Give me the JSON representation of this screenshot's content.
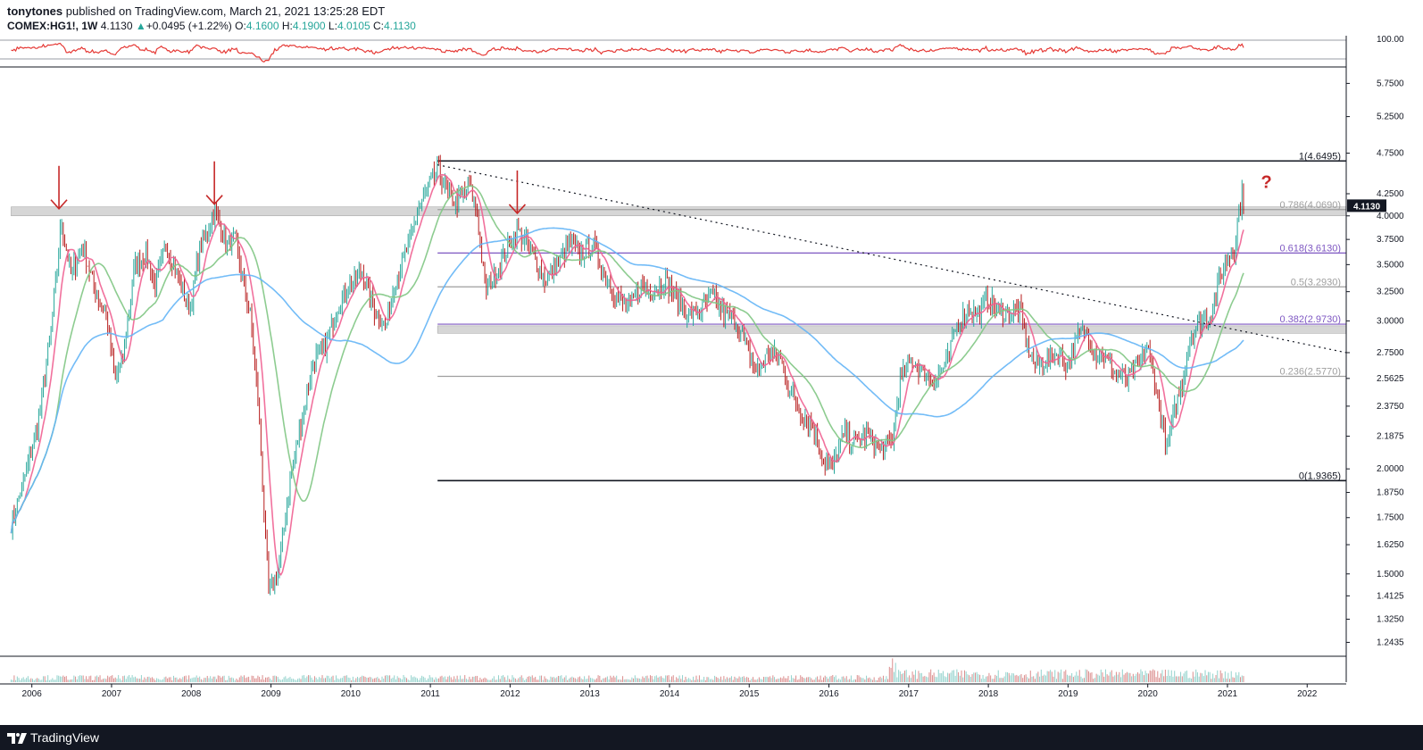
{
  "header": {
    "author": "tonytones",
    "published_text": "published on TradingView.com, March 21, 2021 13:25:28 EDT",
    "symbol": "COMEX:HG1!, 1W",
    "last": "4.1130",
    "change_arrow": "▲",
    "change": "+0.0495 (+1.22%)",
    "open_label": "O:",
    "open": "4.1600",
    "high_label": "H:",
    "high": "4.1900",
    "low_label": "L:",
    "low": "4.0105",
    "close_label": "C:",
    "close": "4.1130"
  },
  "footer": {
    "brand": "TradingView",
    "logo_icon": "tradingview-logo-icon"
  },
  "price_badge": "4.1130",
  "question_mark": "?",
  "oscillator_top_label": "100.00",
  "colors": {
    "up": "#26a69a",
    "down": "#b71c1c",
    "ma_fast": "#f06292",
    "ma_mid": "#81c784",
    "ma_slow": "#64b5f6",
    "fib_purple": "#7e57c2",
    "fib_gray": "#9e9e9e",
    "arrow": "#c62828",
    "oscillator": "#e53935",
    "badge": "#131722"
  },
  "chart_data": {
    "type": "candlestick",
    "timeframe": "1W",
    "symbol": "COMEX:HG1!",
    "x_ticks": [
      "2006",
      "2007",
      "2008",
      "2009",
      "2010",
      "2011",
      "2012",
      "2013",
      "2014",
      "2015",
      "2016",
      "2017",
      "2018",
      "2019",
      "2020",
      "2021",
      "2022"
    ],
    "y_ticks": [
      "5.7500",
      "5.2500",
      "4.7500",
      "4.2500",
      "4.0000",
      "3.7500",
      "3.5000",
      "3.2500",
      "3.0000",
      "2.7500",
      "2.5625",
      "2.3750",
      "2.1875",
      "2.0000",
      "1.8750",
      "1.7500",
      "1.6250",
      "1.5000",
      "1.4125",
      "1.3250",
      "1.2435"
    ],
    "y_scale": "log",
    "ylim": [
      1.2,
      6.0
    ],
    "xlim": [
      2005.7,
      2022.5
    ],
    "price_path": [
      [
        2005.75,
        1.72
      ],
      [
        2005.95,
        2.0
      ],
      [
        2006.1,
        2.3
      ],
      [
        2006.25,
        2.9
      ],
      [
        2006.38,
        3.95
      ],
      [
        2006.5,
        3.4
      ],
      [
        2006.65,
        3.7
      ],
      [
        2006.8,
        3.25
      ],
      [
        2006.95,
        3.05
      ],
      [
        2007.05,
        2.55
      ],
      [
        2007.15,
        2.7
      ],
      [
        2007.3,
        3.5
      ],
      [
        2007.45,
        3.6
      ],
      [
        2007.55,
        3.3
      ],
      [
        2007.7,
        3.7
      ],
      [
        2007.9,
        3.25
      ],
      [
        2008.0,
        3.1
      ],
      [
        2008.1,
        3.6
      ],
      [
        2008.3,
        4.05
      ],
      [
        2008.45,
        3.7
      ],
      [
        2008.55,
        3.75
      ],
      [
        2008.65,
        3.4
      ],
      [
        2008.75,
        3.05
      ],
      [
        2008.85,
        2.4
      ],
      [
        2008.92,
        1.8
      ],
      [
        2008.98,
        1.42
      ],
      [
        2009.1,
        1.5
      ],
      [
        2009.25,
        1.95
      ],
      [
        2009.4,
        2.3
      ],
      [
        2009.55,
        2.7
      ],
      [
        2009.7,
        2.8
      ],
      [
        2009.85,
        3.15
      ],
      [
        2010.0,
        3.3
      ],
      [
        2010.15,
        3.45
      ],
      [
        2010.3,
        3.1
      ],
      [
        2010.45,
        2.95
      ],
      [
        2010.55,
        3.3
      ],
      [
        2010.7,
        3.6
      ],
      [
        2010.85,
        4.05
      ],
      [
        2011.0,
        4.35
      ],
      [
        2011.1,
        4.55
      ],
      [
        2011.25,
        4.2
      ],
      [
        2011.35,
        4.15
      ],
      [
        2011.5,
        4.35
      ],
      [
        2011.6,
        4.0
      ],
      [
        2011.7,
        3.25
      ],
      [
        2011.85,
        3.45
      ],
      [
        2012.0,
        3.7
      ],
      [
        2012.1,
        3.85
      ],
      [
        2012.3,
        3.6
      ],
      [
        2012.45,
        3.35
      ],
      [
        2012.6,
        3.5
      ],
      [
        2012.75,
        3.7
      ],
      [
        2012.9,
        3.6
      ],
      [
        2013.05,
        3.7
      ],
      [
        2013.2,
        3.4
      ],
      [
        2013.35,
        3.2
      ],
      [
        2013.5,
        3.1
      ],
      [
        2013.65,
        3.3
      ],
      [
        2013.8,
        3.25
      ],
      [
        2013.95,
        3.35
      ],
      [
        2014.1,
        3.2
      ],
      [
        2014.25,
        3.05
      ],
      [
        2014.4,
        3.1
      ],
      [
        2014.55,
        3.2
      ],
      [
        2014.7,
        3.05
      ],
      [
        2014.85,
        3.0
      ],
      [
        2015.0,
        2.75
      ],
      [
        2015.1,
        2.6
      ],
      [
        2015.25,
        2.75
      ],
      [
        2015.4,
        2.7
      ],
      [
        2015.5,
        2.5
      ],
      [
        2015.65,
        2.35
      ],
      [
        2015.8,
        2.25
      ],
      [
        2015.95,
        2.05
      ],
      [
        2016.05,
        2.0
      ],
      [
        2016.2,
        2.2
      ],
      [
        2016.35,
        2.15
      ],
      [
        2016.5,
        2.2
      ],
      [
        2016.65,
        2.1
      ],
      [
        2016.8,
        2.15
      ],
      [
        2016.9,
        2.55
      ],
      [
        2017.05,
        2.7
      ],
      [
        2017.2,
        2.6
      ],
      [
        2017.35,
        2.55
      ],
      [
        2017.5,
        2.7
      ],
      [
        2017.6,
        2.95
      ],
      [
        2017.75,
        3.1
      ],
      [
        2017.9,
        3.05
      ],
      [
        2018.0,
        3.2
      ],
      [
        2018.1,
        3.1
      ],
      [
        2018.25,
        3.05
      ],
      [
        2018.4,
        3.1
      ],
      [
        2018.5,
        2.8
      ],
      [
        2018.6,
        2.65
      ],
      [
        2018.75,
        2.7
      ],
      [
        2018.9,
        2.75
      ],
      [
        2019.0,
        2.65
      ],
      [
        2019.15,
        2.9
      ],
      [
        2019.25,
        2.9
      ],
      [
        2019.35,
        2.75
      ],
      [
        2019.5,
        2.7
      ],
      [
        2019.6,
        2.6
      ],
      [
        2019.75,
        2.55
      ],
      [
        2019.9,
        2.65
      ],
      [
        2020.0,
        2.8
      ],
      [
        2020.1,
        2.55
      ],
      [
        2020.2,
        2.25
      ],
      [
        2020.25,
        2.1
      ],
      [
        2020.35,
        2.35
      ],
      [
        2020.45,
        2.55
      ],
      [
        2020.55,
        2.9
      ],
      [
        2020.7,
        3.0
      ],
      [
        2020.8,
        3.05
      ],
      [
        2020.9,
        3.35
      ],
      [
        2021.0,
        3.55
      ],
      [
        2021.1,
        3.65
      ],
      [
        2021.15,
        4.05
      ],
      [
        2021.2,
        4.25
      ],
      [
        2021.22,
        4.113
      ]
    ],
    "moving_averages": [
      "fast (pink)",
      "mid (green)",
      "slow (blue)"
    ],
    "fib_levels": [
      {
        "label": "1(4.6495)",
        "value": 4.6495,
        "color": "black"
      },
      {
        "label": "0.786(4.0690)",
        "value": 4.069,
        "color": "gray"
      },
      {
        "label": "0.618(3.6130)",
        "value": 3.613,
        "color": "purple"
      },
      {
        "label": "0.5(3.2930)",
        "value": 3.293,
        "color": "gray"
      },
      {
        "label": "0.382(2.9730)",
        "value": 2.973,
        "color": "purple"
      },
      {
        "label": "0.236(2.5770)",
        "value": 2.577,
        "color": "gray"
      },
      {
        "label": "0(1.9365)",
        "value": 1.9365,
        "color": "black"
      }
    ],
    "fib_start_x": 2011.1,
    "zones": [
      {
        "from": 4.0,
        "to": 4.1,
        "x_from": 2005.75
      },
      {
        "from": 2.9,
        "to": 2.96,
        "x_from": 2011.1
      }
    ],
    "trendline": {
      "x1": 2011.1,
      "y1": 4.6,
      "x2": 2022.5,
      "y2": 2.75,
      "style": "dotted"
    },
    "annotation_arrows": [
      {
        "x": 2006.35,
        "y": 4.0
      },
      {
        "x": 2008.3,
        "y": 4.05
      },
      {
        "x": 2012.1,
        "y": 3.95
      }
    ]
  }
}
